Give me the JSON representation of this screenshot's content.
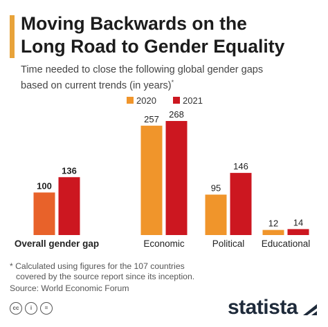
{
  "header": {
    "title_line1": "Moving Backwards on the",
    "title_line2": "Long Road to Gender Equality",
    "subtitle_line1": "Time needed to close the following global gender gaps",
    "subtitle_line2": "based on current trends (in years)",
    "subtitle_mark": "*",
    "accent_color": "#e8a33a"
  },
  "chart_data": {
    "type": "bar",
    "title": "Moving Backwards on the Long Road to Gender Equality",
    "subtitle": "Time needed to close the following global gender gaps based on current trends (in years)*",
    "categories": [
      "Overall gender gap",
      "Economic",
      "Political",
      "Educational"
    ],
    "series": [
      {
        "name": "2020",
        "values": [
          100,
          257,
          95,
          12
        ],
        "color": "#f0952b"
      },
      {
        "name": "2021",
        "values": [
          136,
          268,
          146,
          14
        ],
        "color": "#cc1720"
      }
    ],
    "first_series_override_color": "#e8622a",
    "ylim": [
      0,
      268
    ],
    "legend_position": "top-center",
    "grid": false,
    "xlabel": "",
    "ylabel": ""
  },
  "footer": {
    "footnote_line1": "* Calculated using figures for the 107 countries",
    "footnote_line2": "covered by the source report since its inception.",
    "source": "Source: World Economic Forum",
    "cc_icons": [
      "cc-icon",
      "attribution-icon",
      "equals-icon"
    ],
    "brand": "statista",
    "brand_color": "#1e2a3a"
  }
}
